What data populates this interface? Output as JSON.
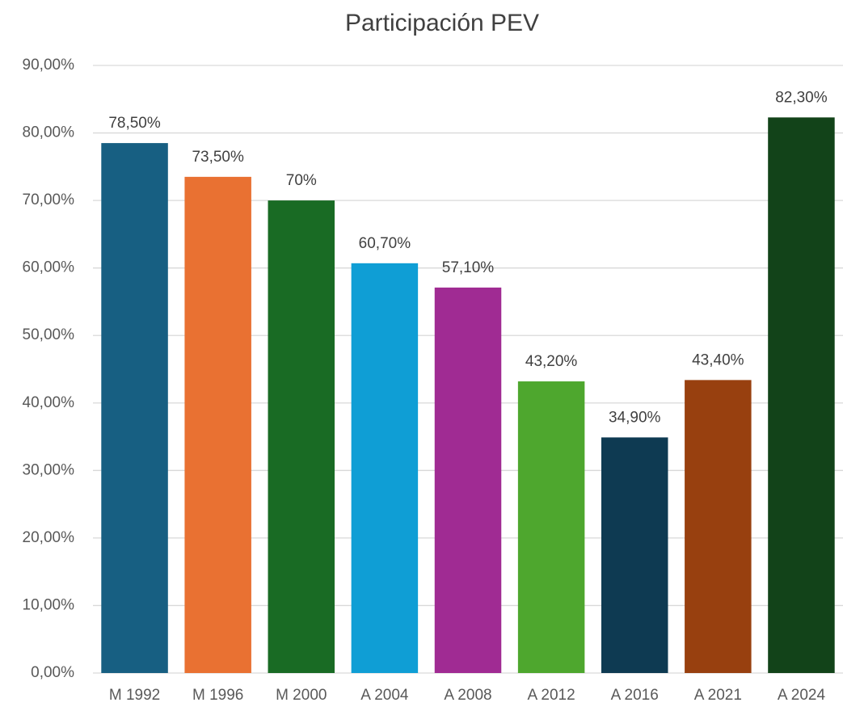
{
  "chart_data": {
    "type": "bar",
    "title": "Participación PEV",
    "categories": [
      "M 1992",
      "M 1996",
      "M 2000",
      "A 2004",
      "A 2008",
      "A 2012",
      "A 2016",
      "A 2021",
      "A 2024"
    ],
    "values": [
      78.5,
      73.5,
      70,
      60.7,
      57.1,
      43.2,
      34.9,
      43.4,
      82.3
    ],
    "value_labels": [
      "78,50%",
      "73,50%",
      "70%",
      "60,70%",
      "57,10%",
      "43,20%",
      "34,90%",
      "43,40%",
      "82,30%"
    ],
    "colors": [
      "#175f82",
      "#e97132",
      "#196b24",
      "#0f9ed5",
      "#a02b93",
      "#4ea72e",
      "#0e3a52",
      "#98400f",
      "#124319"
    ],
    "ylim": [
      0,
      90
    ],
    "yticks": [
      {
        "value": 0,
        "label": "0,00%"
      },
      {
        "value": 10,
        "label": "10,00%"
      },
      {
        "value": 20,
        "label": "20,00%"
      },
      {
        "value": 30,
        "label": "30,00%"
      },
      {
        "value": 40,
        "label": "40,00%"
      },
      {
        "value": 50,
        "label": "50,00%"
      },
      {
        "value": 60,
        "label": "60,00%"
      },
      {
        "value": 70,
        "label": "70,00%"
      },
      {
        "value": 80,
        "label": "80,00%"
      },
      {
        "value": 90,
        "label": "90,00%"
      }
    ],
    "grid": true
  }
}
